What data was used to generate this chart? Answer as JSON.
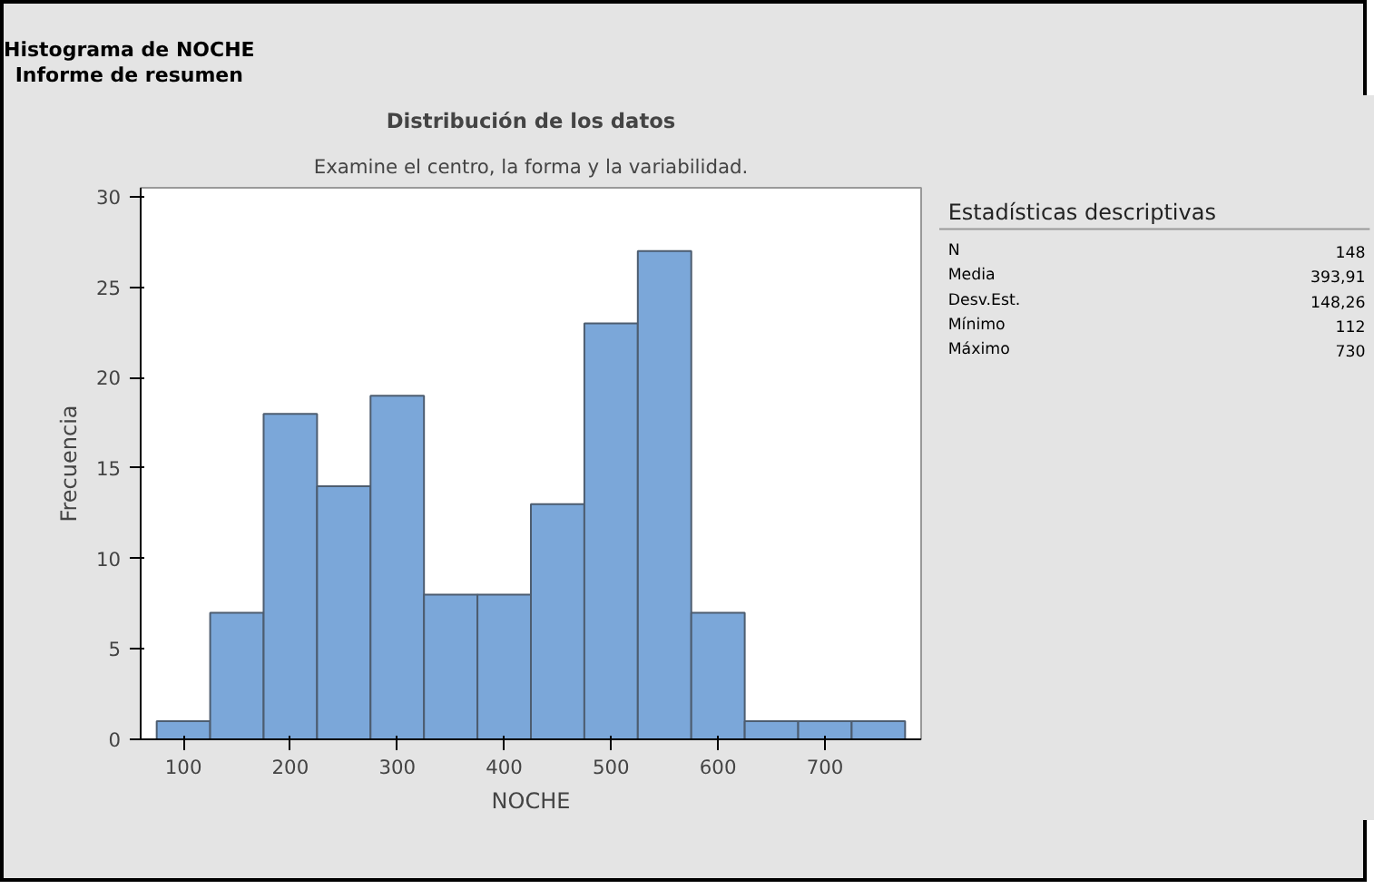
{
  "chart_data": [
    {
      "type": "histogram",
      "title": "Histograma de NOCHE",
      "subtitle": "Informe de resumen",
      "annotations": [
        "Distribución de los datos",
        "Examine el centro, la forma y la variabilidad."
      ],
      "xlabel": "NOCHE",
      "ylabel": "Frecuencia",
      "bins": [
        75,
        125,
        175,
        225,
        275,
        325,
        375,
        425,
        475,
        525,
        575,
        625,
        675,
        725,
        775
      ],
      "values": [
        1,
        7,
        18,
        14,
        19,
        8,
        8,
        13,
        23,
        27,
        7,
        1,
        1,
        1
      ],
      "color": "#7ba7d9",
      "xlim": [
        60,
        790
      ],
      "xticks": [
        100,
        200,
        300,
        400,
        500,
        600,
        700
      ],
      "ylim": [
        0,
        30.5
      ],
      "yticks": [
        0,
        5,
        10,
        15,
        20,
        25,
        30
      ],
      "grid": false
    },
    {
      "type": "other",
      "title": "Estadísticas descriptivas",
      "categories": [
        "N",
        "Media",
        "Desv.Est.",
        "Mínimo",
        "Máximo"
      ],
      "value_labels": [
        "148",
        "393,91",
        "148,26",
        "112",
        "730"
      ]
    }
  ]
}
